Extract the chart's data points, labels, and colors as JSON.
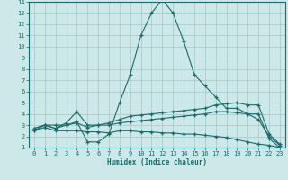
{
  "xlabel": "Humidex (Indice chaleur)",
  "xlim": [
    -0.5,
    23.5
  ],
  "ylim": [
    1,
    14
  ],
  "xticks": [
    0,
    1,
    2,
    3,
    4,
    5,
    6,
    7,
    8,
    9,
    10,
    11,
    12,
    13,
    14,
    15,
    16,
    17,
    18,
    19,
    20,
    21,
    22,
    23
  ],
  "yticks": [
    1,
    2,
    3,
    4,
    5,
    6,
    7,
    8,
    9,
    10,
    11,
    12,
    13,
    14
  ],
  "bg_color": "#cce8e8",
  "grid_color": "#aacccc",
  "line_color": "#1a6b6b",
  "line1_y": [
    2.5,
    3.0,
    3.0,
    3.0,
    3.3,
    1.5,
    1.5,
    2.2,
    5.0,
    7.5,
    11.0,
    13.0,
    14.2,
    13.0,
    10.5,
    7.5,
    6.5,
    5.5,
    4.5,
    4.5,
    4.0,
    3.5,
    2.0,
    1.2
  ],
  "line2_y": [
    2.7,
    3.0,
    2.7,
    3.2,
    4.2,
    3.0,
    3.0,
    3.2,
    3.5,
    3.8,
    3.9,
    4.0,
    4.1,
    4.2,
    4.3,
    4.4,
    4.5,
    4.8,
    4.9,
    5.0,
    4.8,
    4.8,
    2.2,
    1.3
  ],
  "line3_y": [
    2.7,
    3.0,
    2.7,
    3.0,
    3.2,
    2.8,
    3.0,
    3.0,
    3.2,
    3.3,
    3.4,
    3.5,
    3.6,
    3.7,
    3.8,
    3.9,
    4.0,
    4.2,
    4.2,
    4.1,
    4.0,
    4.0,
    1.8,
    1.0
  ],
  "line4_y": [
    2.5,
    2.8,
    2.5,
    2.5,
    2.5,
    2.4,
    2.4,
    2.3,
    2.5,
    2.5,
    2.4,
    2.4,
    2.3,
    2.3,
    2.2,
    2.2,
    2.1,
    2.0,
    1.9,
    1.7,
    1.5,
    1.3,
    1.2,
    1.0
  ]
}
